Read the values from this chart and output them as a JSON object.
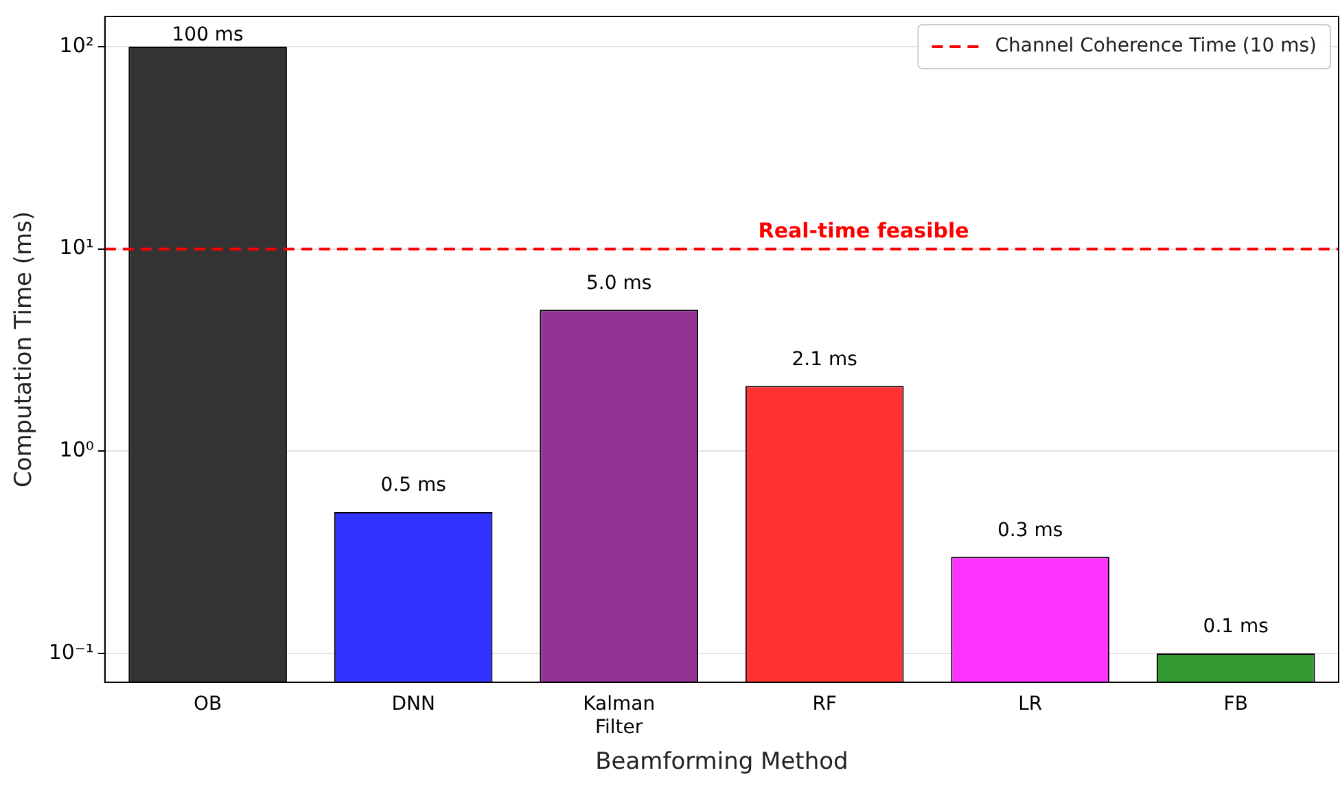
{
  "chart_data": {
    "type": "bar",
    "xlabel": "Beamforming Method",
    "ylabel": "Computation Time (ms)",
    "categories": [
      "OB",
      "DNN",
      "Kalman Filter",
      "RF",
      "LR",
      "FB"
    ],
    "values": [
      100,
      0.5,
      5.0,
      2.1,
      0.3,
      0.1
    ],
    "colors": [
      "#333333",
      "#3333ff",
      "#933393",
      "#ff3333",
      "#ff33ff",
      "#339933"
    ],
    "value_labels": [
      "100 ms",
      "0.5 ms",
      "5.0 ms",
      "2.1 ms",
      "0.3 ms",
      "0.1 ms"
    ],
    "log": "y",
    "ylim": [
      0.072,
      141
    ],
    "yticks": [
      {
        "value": 0.1,
        "label": "10⁻¹"
      },
      {
        "value": 1,
        "label": "10⁰"
      },
      {
        "value": 10,
        "label": "10¹"
      },
      {
        "value": 100,
        "label": "10²"
      }
    ],
    "ref_lines": [
      {
        "axis": "y",
        "value": 10,
        "label": "Channel Coherence Time (10 ms)",
        "color": "#ff0000",
        "line_style": "dashed"
      }
    ],
    "annotations": [
      {
        "text": "Real-time feasible",
        "y": 10
      }
    ],
    "grid": "y",
    "legend": "top right"
  }
}
